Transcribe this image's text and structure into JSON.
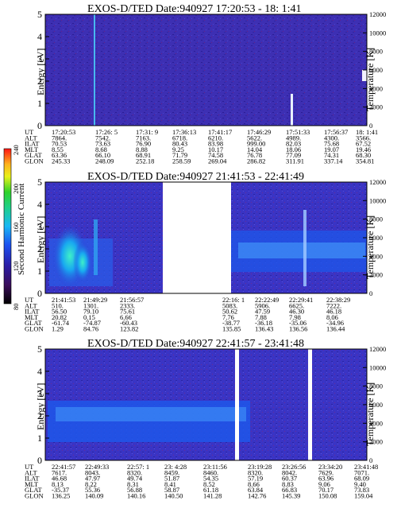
{
  "chart_data": [
    {
      "type": "heatmap",
      "title": "EXOS-D/TED   Date:940927  17:20:53 - 18: 1:41",
      "ylabel": "Energy [eV]",
      "ylim": [
        0,
        5
      ],
      "y_ticks": [
        "0",
        "1",
        "2",
        "3",
        "4",
        "5"
      ],
      "y2label": "Temperature [K]",
      "y2lim": [
        0,
        12000
      ],
      "y2_ticks": [
        "0",
        "2000",
        "4000",
        "6000",
        "8000",
        "10000",
        "12000"
      ],
      "row_labels": [
        "UT",
        "ALT",
        "ILAT",
        "MLT",
        "GLAT",
        "GLON"
      ],
      "columns": [
        [
          "17:20:53",
          "7864.",
          "70.53",
          "8.55",
          "63.36",
          "245.33"
        ],
        [
          "17:26: 5",
          "7542.",
          "73.63",
          "8.68",
          "66.10",
          "248.09"
        ],
        [
          "17:31: 9",
          "7163.",
          "76.90",
          "8.88",
          "68.91",
          "252.18"
        ],
        [
          "17:36:13",
          "6718.",
          "80.43",
          "9.25",
          "71.79",
          "258.59"
        ],
        [
          "17:41:17",
          "6210.",
          "83.98",
          "10.17",
          "74.58",
          "269.04"
        ],
        [
          "17:46:29",
          "5622.",
          "999.00",
          "14.04",
          "76.78",
          "286.82"
        ],
        [
          "17:51:33",
          "4989.",
          "82.03",
          "18.06",
          "77.09",
          "311.91"
        ],
        [
          "17:56:37",
          "4300.",
          "75.68",
          "19.07",
          "74.31",
          "337.14"
        ],
        [
          "18: 1:41",
          "3566.",
          "67.52",
          "19.46",
          "68.30",
          "354.81"
        ]
      ]
    },
    {
      "type": "heatmap",
      "title": "EXOS-D/TED   Date:940927  21:41:53 - 22:41:49",
      "ylabel": "Energy [eV]",
      "ylim": [
        0,
        5
      ],
      "y_ticks": [
        "0",
        "1",
        "2",
        "3",
        "4",
        "5"
      ],
      "y2label": "Temperature [K]",
      "y2lim": [
        0,
        12000
      ],
      "y2_ticks": [
        "0",
        "2000",
        "4000",
        "6000",
        "8000",
        "10000",
        "12000"
      ],
      "colorbar": {
        "label": "Second Harmonic Current",
        "ticks": [
          "80",
          "120",
          "160",
          "200",
          "240"
        ],
        "range": [
          80,
          240
        ]
      },
      "row_labels": [
        "UT",
        "ALT",
        "ILAT",
        "MLT",
        "GLAT",
        "GLON"
      ],
      "columns": [
        [
          "21:41:53",
          "510.",
          "56.50",
          "20.82",
          "-61.74",
          "1.29"
        ],
        [
          "21:49:29",
          "1301.",
          "79.10",
          "0.15",
          "-74.87",
          "84.76"
        ],
        [
          "21:56:57",
          "2333.",
          "75.61",
          "6.66",
          "-60.43",
          "123.82"
        ],
        [
          "22:16: 1",
          "5083.",
          "50.62",
          "7.76",
          "-38.77",
          "135.85"
        ],
        [
          "22:22:49",
          "5906.",
          "47.59",
          "7.88",
          "-36.18",
          "136.43"
        ],
        [
          "22:29:41",
          "6625.",
          "46.30",
          "7.98",
          "-35.06",
          "136.56"
        ],
        [
          "22:38:29",
          "7222.",
          "46.18",
          "8.06",
          "-34.96",
          "136.44"
        ]
      ]
    },
    {
      "type": "heatmap",
      "title": "EXOS-D/TED   Date:940927  22:41:57 - 23:41:48",
      "ylabel": "Energy [eV]",
      "ylim": [
        0,
        5
      ],
      "y_ticks": [
        "0",
        "1",
        "2",
        "3",
        "4",
        "5"
      ],
      "y2label": "Temperature [K]",
      "y2lim": [
        0,
        12000
      ],
      "y2_ticks": [
        "0",
        "2000",
        "4000",
        "6000",
        "8000",
        "10000",
        "12000"
      ],
      "row_labels": [
        "UT",
        "ALT",
        "ILAT",
        "MLT",
        "GLAT",
        "GLON"
      ],
      "columns": [
        [
          "22:41:57",
          "7617.",
          "46.68",
          "8.13",
          "-35.37",
          "136.25"
        ],
        [
          "22:49:33",
          "8043.",
          "47.97",
          "8.22",
          "55.36",
          "140.09"
        ],
        [
          "22:57: 1",
          "8320.",
          "49.74",
          "8.31",
          "56.88",
          "140.16"
        ],
        [
          "23: 4:28",
          "8459.",
          "51.87",
          "8.41",
          "58.87",
          "140.50"
        ],
        [
          "23:11:56",
          "8460.",
          "54.35",
          "8.52",
          "61.18",
          "141.28"
        ],
        [
          "23:19:28",
          "8320.",
          "57.19",
          "8.66",
          "63.84",
          "142.76"
        ],
        [
          "23:26:56",
          "8042.",
          "60.37",
          "8.83",
          "66.83",
          "145.39"
        ],
        [
          "23:34:20",
          "7629.",
          "63.96",
          "9.06",
          "70.17",
          "150.08"
        ],
        [
          "23:41:48",
          "7071.",
          "68.09",
          "9.40",
          "73.83",
          "159.04"
        ]
      ]
    }
  ]
}
